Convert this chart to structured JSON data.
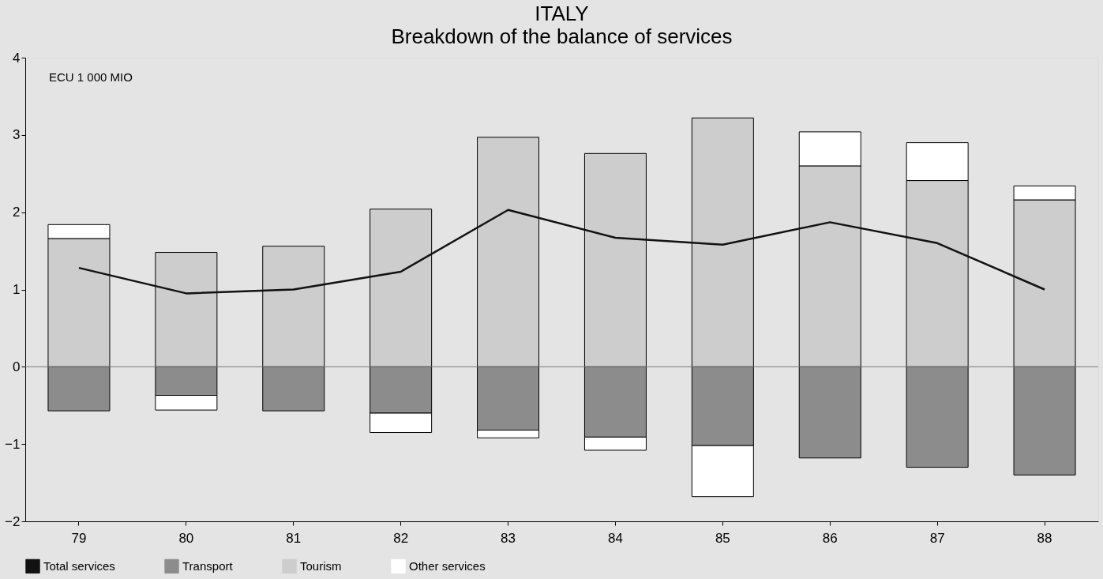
{
  "chart_data": {
    "type": "bar",
    "title": "ITALY",
    "subtitle": "Breakdown of the balance of services",
    "ylabel": "ECU 1 000 MIO",
    "categories": [
      "79",
      "80",
      "81",
      "82",
      "83",
      "84",
      "85",
      "86",
      "87",
      "88"
    ],
    "stacked": true,
    "series": [
      {
        "name": "Total services",
        "type": "line",
        "color": "#111111",
        "values": [
          1.28,
          0.95,
          1.0,
          1.23,
          2.03,
          1.67,
          1.58,
          1.87,
          1.6,
          1.0
        ]
      },
      {
        "name": "Transport",
        "color": "#8c8c8c",
        "values": [
          -0.57,
          -0.37,
          -0.57,
          -0.6,
          -0.82,
          -0.91,
          -1.02,
          -1.18,
          -1.3,
          -1.4
        ]
      },
      {
        "name": "Tourism",
        "color": "#cdcdcd",
        "values": [
          1.66,
          1.48,
          1.56,
          2.04,
          2.97,
          2.76,
          3.22,
          2.6,
          2.41,
          2.16
        ]
      },
      {
        "name": "Other services",
        "color": "#ffffff",
        "values": [
          0.18,
          -0.19,
          null,
          -0.25,
          -0.1,
          -0.17,
          -0.66,
          0.44,
          0.49,
          0.18
        ]
      }
    ],
    "ylim": [
      -2,
      4
    ],
    "yticks": [
      -2,
      -1,
      0,
      1,
      2,
      3,
      4
    ],
    "ref_lines": [
      {
        "axis": "y",
        "value": 0,
        "color": "#777777"
      }
    ],
    "grid": false,
    "legend": "bottom"
  }
}
